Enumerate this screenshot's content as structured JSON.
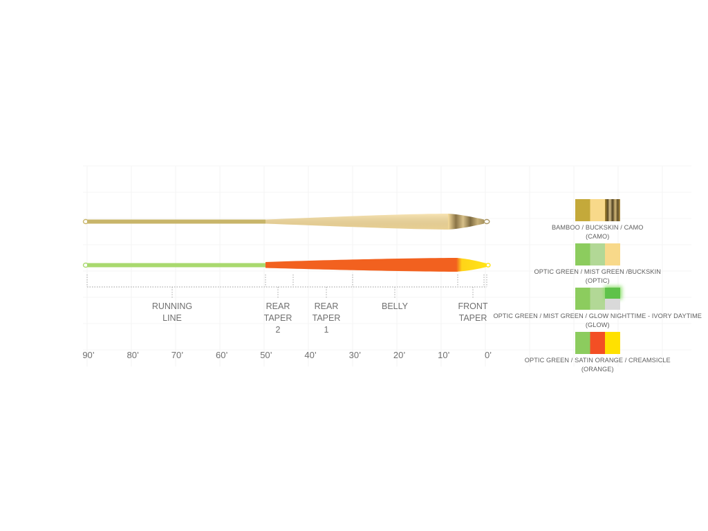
{
  "segments": [
    {
      "id": "running-line",
      "lines": [
        "RUNNING",
        "LINE"
      ]
    },
    {
      "id": "rear-taper-2",
      "lines": [
        "REAR",
        "TAPER",
        "2"
      ]
    },
    {
      "id": "rear-taper-1",
      "lines": [
        "REAR",
        "TAPER",
        "1"
      ]
    },
    {
      "id": "belly",
      "lines": [
        "BELLY"
      ]
    },
    {
      "id": "front-taper",
      "lines": [
        "FRONT",
        "TAPER"
      ]
    }
  ],
  "scale": {
    "unit": "ft",
    "ticks": [
      {
        "value": 90,
        "label": "90’"
      },
      {
        "value": 80,
        "label": "80’"
      },
      {
        "value": 70,
        "label": "70’"
      },
      {
        "value": 60,
        "label": "60’"
      },
      {
        "value": 50,
        "label": "50’"
      },
      {
        "value": 40,
        "label": "40’"
      },
      {
        "value": 30,
        "label": "30’"
      },
      {
        "value": 20,
        "label": "20’"
      },
      {
        "value": 10,
        "label": "10’"
      },
      {
        "value": 0,
        "label": "0’"
      }
    ]
  },
  "lines": [
    {
      "id": "line-camo",
      "running": "#c8b56a",
      "head": "#f6dc9c",
      "tip": "#8a7446"
    },
    {
      "id": "line-orange",
      "running": "#a9d96e",
      "head": "#f2611f",
      "tip": "#ffe418"
    }
  ],
  "colorways": [
    {
      "id": "camo",
      "name": "BAMBOO / BUCKSKIN / CAMO",
      "code": "(CAMO)",
      "colors": [
        "#c4a93a",
        "#f8d98a",
        "camo-stripes"
      ]
    },
    {
      "id": "optic",
      "name": "OPTIC GREEN / MIST GREEN /BUCKSKIN",
      "code": "(OPTIC)",
      "colors": [
        "#8ccc5e",
        "#b2d896",
        "#f8d98a"
      ]
    },
    {
      "id": "glow",
      "name": "OPTIC GREEN / MIST GREEN / GLOW NIGHTTIME - IVORY DAYTIME",
      "code": "(GLOW)",
      "colors": [
        "#8ccc5e",
        "#b2d896",
        "glow-split"
      ]
    },
    {
      "id": "orange",
      "name": "OPTIC GREEN / SATIN ORANGE / CREAMSICLE",
      "code": "(ORANGE)",
      "colors": [
        "#8ccc5e",
        "#f34f24",
        "#ffe100"
      ]
    }
  ]
}
